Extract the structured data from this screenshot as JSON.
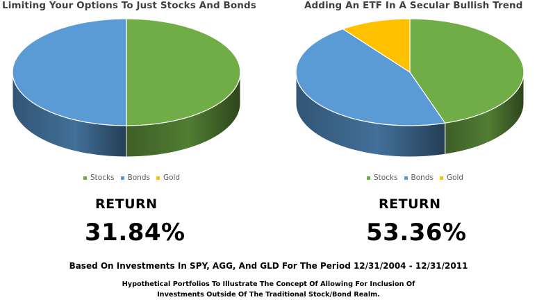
{
  "chart_data": [
    {
      "type": "pie",
      "title": "Limiting Your Options To Just Stocks And Bonds",
      "categories": [
        "Stocks",
        "Bonds",
        "Gold"
      ],
      "values": [
        50,
        50,
        0
      ],
      "colors": [
        "#70AD47",
        "#5B9BD5",
        "#FFC000"
      ],
      "legend": "bottom",
      "return_label": "RETURN",
      "return_value": "31.84%"
    },
    {
      "type": "pie",
      "title": "Adding An ETF In A Secular Bullish Trend",
      "categories": [
        "Stocks",
        "Bonds",
        "Gold"
      ],
      "values": [
        45,
        45,
        10
      ],
      "colors": [
        "#70AD47",
        "#5B9BD5",
        "#FFC000"
      ],
      "legend": "bottom",
      "return_label": "RETURN",
      "return_value": "53.36%"
    }
  ],
  "footnote": {
    "main": "Based On Investments In SPY, AGG, And GLD For The Period 12/31/2004 - 12/31/2011",
    "sub_line1": "Hypothetical Portfolios To Illustrate The Concept Of Allowing For Inclusion Of",
    "sub_line2": "Investments Outside Of The Traditional Stock/Bond Realm."
  }
}
